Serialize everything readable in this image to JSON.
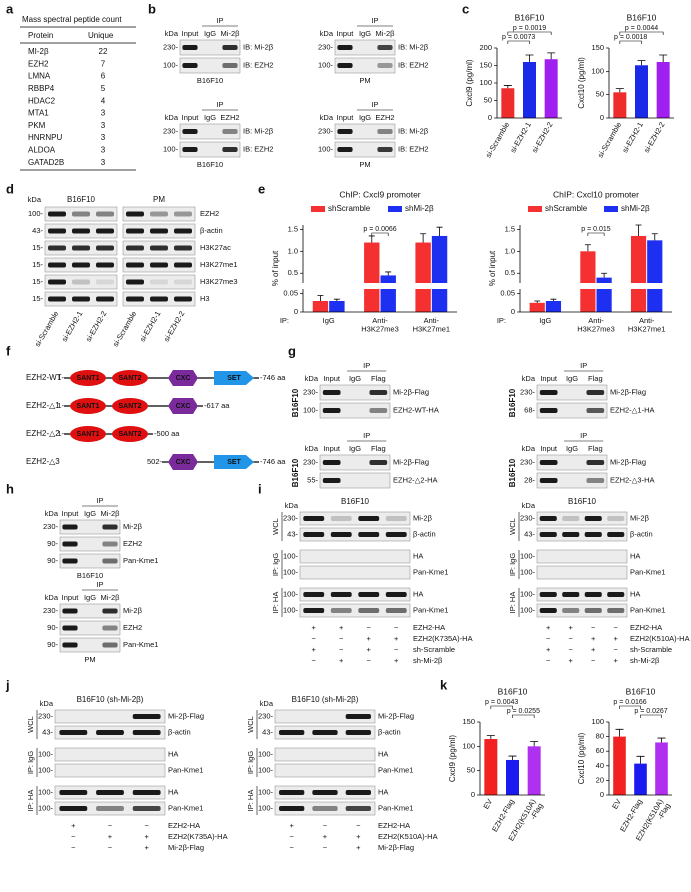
{
  "panel_labels": [
    "a",
    "b",
    "c",
    "d",
    "e",
    "f",
    "g",
    "h",
    "i",
    "j",
    "k"
  ],
  "kda_label": "kDa",
  "a": {
    "title": "Mass spectral peptide count",
    "header": [
      "Protein",
      "Unique"
    ],
    "rows": [
      {
        "protein": "MI-2β",
        "unique": 22,
        "color": "#d8262b"
      },
      {
        "protein": "EZH2",
        "unique": 7,
        "color": "#2a3fbf"
      },
      {
        "protein": "LMNA",
        "unique": 6
      },
      {
        "protein": "RBBP4",
        "unique": 5
      },
      {
        "protein": "HDAC2",
        "unique": 4
      },
      {
        "protein": "MTA1",
        "unique": 3
      },
      {
        "protein": "PKM",
        "unique": 3
      },
      {
        "protein": "HNRNPU",
        "unique": 3
      },
      {
        "protein": "ALDOA",
        "unique": 3
      },
      {
        "protein": "GATAD2B",
        "unique": 3
      }
    ]
  },
  "b": {
    "blots": [
      {
        "ip": "IP",
        "lanes": [
          "Input",
          "IgG",
          "Mi-2β"
        ],
        "kda": [
          "230-",
          "100-"
        ],
        "rows": [
          "IB: Mi-2β",
          "IB: EZH2"
        ],
        "cell": "B16F10"
      },
      {
        "ip": "IP",
        "lanes": [
          "Input",
          "IgG",
          "Mi-2β"
        ],
        "kda": [
          "230-",
          "100-"
        ],
        "rows": [
          "IB: Mi-2β",
          "IB: EZH2"
        ],
        "cell": "PM"
      },
      {
        "ip": "IP",
        "lanes": [
          "Input",
          "IgG",
          "EZH2"
        ],
        "kda": [
          "230-",
          "100-"
        ],
        "rows": [
          "IB: Mi-2β",
          "IB: EZH2"
        ],
        "cell": "B16F10"
      },
      {
        "ip": "IP",
        "lanes": [
          "Input",
          "IgG",
          "EZH2"
        ],
        "kda": [
          "230-",
          "100-"
        ],
        "rows": [
          "IB: Mi-2β",
          "IB: EZH2"
        ],
        "cell": "PM"
      }
    ]
  },
  "d": {
    "groups": [
      "B16F10",
      "PM"
    ],
    "kda": [
      "100-",
      "43-",
      "15-",
      "15-",
      "15-",
      "15-"
    ],
    "rows": [
      "EZH2",
      "β-actin",
      "H3K27ac",
      "H3K27me1",
      "H3K27me3",
      "H3"
    ],
    "lanes": [
      "si-Scramble",
      "si-EZH2-1",
      "si-EZH2-2",
      "si-Scramble",
      "si-EZH2-1",
      "si-EZH2-2"
    ]
  },
  "f": {
    "constructs": [
      {
        "name": "EZH2-WT",
        "start": "1-",
        "domains": [
          "SANT1",
          "SANT2",
          "CXC",
          "SET"
        ],
        "end": "-746 aa"
      },
      {
        "name": "EZH2-△1",
        "start": "1-",
        "domains": [
          "SANT1",
          "SANT2",
          "CXC"
        ],
        "end": "-617 aa"
      },
      {
        "name": "EZH2-△2",
        "start": "1-",
        "domains": [
          "SANT1",
          "SANT2"
        ],
        "end": "-500 aa"
      },
      {
        "name": "EZH2-△3",
        "start": "502-",
        "domains": [
          "CXC",
          "SET"
        ],
        "end": "-746 aa"
      }
    ]
  },
  "g": {
    "blots": [
      {
        "ip": "IP",
        "lanes": [
          "Input",
          "IgG",
          "Flag"
        ],
        "kda": [
          "230-",
          "100-"
        ],
        "rows": [
          "Mi-2β-Flag",
          "EZH2-WT-HA"
        ],
        "cell": "B16F10"
      },
      {
        "ip": "IP",
        "lanes": [
          "Input",
          "IgG",
          "Flag"
        ],
        "kda": [
          "230-",
          "68-"
        ],
        "rows": [
          "Mi-2β-Flag",
          "EZH2-△1-HA"
        ],
        "cell": "B16F10"
      },
      {
        "ip": "IP",
        "lanes": [
          "Input",
          "IgG",
          "Flag"
        ],
        "kda": [
          "230-",
          "55-"
        ],
        "rows": [
          "Mi-2β-Flag",
          "EZH2-△2-HA"
        ],
        "cell": "B16F10"
      },
      {
        "ip": "IP",
        "lanes": [
          "Input",
          "IgG",
          "Flag"
        ],
        "kda": [
          "230-",
          "28-"
        ],
        "rows": [
          "Mi-2β-Flag",
          "EZH2-△3-HA"
        ],
        "cell": "B16F10"
      }
    ]
  },
  "h": {
    "blots": [
      {
        "ip": "IP",
        "lanes": [
          "Input",
          "IgG",
          "Mi-2β"
        ],
        "kda": [
          "230-",
          "90-",
          "90-"
        ],
        "rows": [
          "Mi-2β",
          "EZH2",
          "Pan-Kme1"
        ],
        "cell": "B16F10"
      },
      {
        "ip": "IP",
        "lanes": [
          "Input",
          "IgG",
          "Mi-2β"
        ],
        "kda": [
          "230-",
          "90-",
          "90-"
        ],
        "rows": [
          "Mi-2β",
          "EZH2",
          "Pan-Kme1"
        ],
        "cell": "PM"
      }
    ]
  },
  "i": {
    "blots": [
      {
        "cell": "B16F10",
        "groups": [
          "WCL",
          "IP: IgG",
          "IP: HA"
        ],
        "kda": [
          "230-",
          "43-",
          "100-",
          "100-",
          "100-",
          "100-"
        ],
        "rows": [
          "Mi-2β",
          "β-actin",
          "HA",
          "Pan-Kme1",
          "HA",
          "Pan-Kme1"
        ],
        "conditions": [
          {
            "name": "EZH2-HA",
            "signs": [
              "+",
              "+",
              "−",
              "−"
            ]
          },
          {
            "name": "EZH2(K735A)-HA",
            "signs": [
              "−",
              "−",
              "+",
              "+"
            ]
          },
          {
            "name": "sh-Scramble",
            "signs": [
              "+",
              "−",
              "+",
              "−"
            ]
          },
          {
            "name": "sh-Mi-2β",
            "signs": [
              "−",
              "+",
              "−",
              "+"
            ]
          }
        ]
      },
      {
        "cell": "B16F10",
        "groups": [
          "WCL",
          "IP: IgG",
          "IP: HA"
        ],
        "kda": [
          "230-",
          "43-",
          "100-",
          "100-",
          "100-",
          "100-"
        ],
        "rows": [
          "Mi-2β",
          "β-actin",
          "HA",
          "Pan-Kme1",
          "HA",
          "Pan-Kme1"
        ],
        "conditions": [
          {
            "name": "EZH2-HA",
            "signs": [
              "+",
              "+",
              "−",
              "−"
            ]
          },
          {
            "name": "EZH2(K510A)-HA",
            "signs": [
              "−",
              "−",
              "+",
              "+"
            ]
          },
          {
            "name": "sh-Scramble",
            "signs": [
              "+",
              "−",
              "+",
              "−"
            ]
          },
          {
            "name": "sh-Mi-2β",
            "signs": [
              "−",
              "+",
              "−",
              "+"
            ]
          }
        ]
      }
    ]
  },
  "j": {
    "blots": [
      {
        "cell": "B16F10 (sh-Mi-2β)",
        "groups": [
          "WCL",
          "IP: IgG",
          "IP: HA"
        ],
        "kda": [
          "230-",
          "43-",
          "100-",
          "100-",
          "100-",
          "100-"
        ],
        "rows": [
          "Mi-2β-Flag",
          "β-actin",
          "HA",
          "Pan-Kme1",
          "HA",
          "Pan-Kme1"
        ],
        "conditions": [
          {
            "name": "EZH2-HA",
            "signs": [
              "+",
              "−",
              "−"
            ]
          },
          {
            "name": "EZH2(K735A)-HA",
            "signs": [
              "−",
              "+",
              "+"
            ]
          },
          {
            "name": "Mi-2β-Flag",
            "signs": [
              "−",
              "−",
              "+"
            ]
          }
        ]
      },
      {
        "cell": "B16F10 (sh-Mi-2β)",
        "groups": [
          "WCL",
          "IP: IgG",
          "IP: HA"
        ],
        "kda": [
          "230-",
          "43-",
          "100-",
          "100-",
          "100-",
          "100-"
        ],
        "rows": [
          "Mi-2β-Flag",
          "β-actin",
          "HA",
          "Pan-Kme1",
          "HA",
          "Pan-Kme1"
        ],
        "conditions": [
          {
            "name": "EZH2-HA",
            "signs": [
              "+",
              "−",
              "−"
            ]
          },
          {
            "name": "EZH2(K510A)-HA",
            "signs": [
              "−",
              "+",
              "+"
            ]
          },
          {
            "name": "Mi-2β-Flag",
            "signs": [
              "−",
              "−",
              "+"
            ]
          }
        ]
      }
    ]
  },
  "chart_data": [
    {
      "type": "bar",
      "title": "B16F10",
      "ylabel": "Cxcl9 (pg/ml)",
      "categories": [
        "si-Scramble",
        "si-EZH2-1",
        "si-EZH2-2"
      ],
      "values": [
        85,
        160,
        168
      ],
      "errors": [
        8,
        20,
        18
      ],
      "colors": [
        "#ee2c2c",
        "#1a2be8",
        "#a020f0"
      ],
      "ylim": [
        0,
        200
      ],
      "yticks": [
        0,
        50,
        100,
        150,
        200
      ],
      "annotations": [
        "p = 0.0019",
        "p = 0.0073"
      ]
    },
    {
      "type": "bar",
      "title": "B16F10",
      "ylabel": "Cxcl10 (pg/ml)",
      "categories": [
        "si-Scramble",
        "si-EZH2-1",
        "si-EZH2-2"
      ],
      "values": [
        55,
        113,
        120
      ],
      "errors": [
        8,
        10,
        15
      ],
      "colors": [
        "#ee2c2c",
        "#1a2be8",
        "#a020f0"
      ],
      "ylim": [
        0,
        150
      ],
      "yticks": [
        0,
        50,
        100,
        150
      ],
      "annotations": [
        "p = 0.0044",
        "p = 0.0018"
      ]
    },
    {
      "type": "bar",
      "title": "ChIP: Cxcl9 promoter",
      "ylabel": "% of input",
      "xlabel": "IP:",
      "categories": [
        "IgG",
        "Anti-\nH3K27me3",
        "Anti-\nH3K27me1"
      ],
      "series": [
        {
          "name": "shScramble",
          "color": "#f43030",
          "values": [
            0.03,
            1.2,
            1.2
          ],
          "errors": [
            0.015,
            0.15,
            0.2
          ]
        },
        {
          "name": "shMi-2β",
          "color": "#1d2ff0",
          "values": [
            0.03,
            0.45,
            1.35
          ],
          "errors": [
            0.005,
            0.08,
            0.2
          ]
        }
      ],
      "ylim": [
        0,
        1.6
      ],
      "ybreak": [
        0.06,
        0.3
      ],
      "yticks": [
        0,
        0.05,
        0.5,
        {
          "value": 1,
          "label": "1.0"
        },
        1.5
      ],
      "annotations": [
        "p = 0.0066"
      ]
    },
    {
      "type": "bar",
      "title": "ChIP: Cxcl10 promoter",
      "ylabel": "% of input",
      "xlabel": "IP:",
      "categories": [
        "IgG",
        "Anti-\nH3K27me3",
        "Anti-\nH3K27me1"
      ],
      "series": [
        {
          "name": "shScramble",
          "color": "#f43030",
          "values": [
            0.025,
            1.0,
            1.35
          ],
          "errors": [
            0.005,
            0.15,
            0.25
          ]
        },
        {
          "name": "shMi-2β",
          "color": "#1d2ff0",
          "values": [
            0.03,
            0.4,
            1.25
          ],
          "errors": [
            0.005,
            0.1,
            0.15
          ]
        }
      ],
      "ylim": [
        0,
        1.6
      ],
      "ybreak": [
        0.06,
        0.3
      ],
      "yticks": [
        0,
        0.05,
        0.5,
        {
          "value": 1,
          "label": "1.0"
        },
        1.5
      ],
      "annotations": [
        "p = 0.015"
      ]
    },
    {
      "type": "bar",
      "title": "B16F10",
      "ylabel": "Cxcl9 (pg/ml)",
      "categories": [
        "EV",
        "EZH2-Flag",
        "EZH2(K510A)\n-Flag"
      ],
      "values": [
        115,
        72,
        100
      ],
      "errors": [
        7,
        8,
        10
      ],
      "colors": [
        "#f22222",
        "#1b1bf0",
        "#b030f0"
      ],
      "ylim": [
        0,
        150
      ],
      "yticks": [
        0,
        50,
        100,
        150
      ],
      "annotations": [
        "p = 0.0043",
        "p = 0.0255"
      ]
    },
    {
      "type": "bar",
      "title": "B16F10",
      "ylabel": "Cxcl10 (pg/ml)",
      "categories": [
        "EV",
        "EZH2-Flag",
        "EZH2(K510A)\n-Flag"
      ],
      "values": [
        80,
        43,
        72
      ],
      "errors": [
        10,
        10,
        6
      ],
      "colors": [
        "#f22222",
        "#1b1bf0",
        "#b030f0"
      ],
      "ylim": [
        0,
        100
      ],
      "yticks": [
        0,
        20,
        40,
        60,
        80,
        100
      ],
      "annotations": [
        "p = 0.0166",
        "p = 0.0267"
      ]
    }
  ]
}
